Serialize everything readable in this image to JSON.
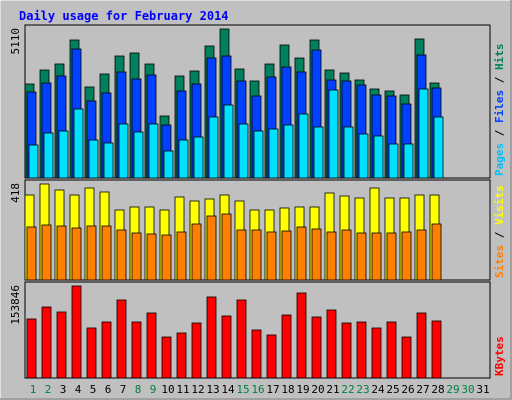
{
  "chart_data": [
    {
      "type": "bar",
      "panel": "hits-files-pages",
      "title": "Daily usage for February 2014",
      "ytick_label": "5110",
      "ylabel_parts": [
        "Pages",
        "Files",
        "Hits"
      ],
      "ylabel_separator": " / ",
      "ylim": [
        0,
        5110
      ],
      "categories": [
        "1",
        "2",
        "3",
        "4",
        "5",
        "6",
        "7",
        "8",
        "9",
        "10",
        "11",
        "12",
        "13",
        "14",
        "15",
        "16",
        "17",
        "18",
        "19",
        "20",
        "21",
        "22",
        "23",
        "24",
        "25",
        "26",
        "27",
        "28",
        "29",
        "30",
        "31"
      ],
      "series": [
        {
          "name": "Hits",
          "color": "#00805c",
          "values": [
            3230,
            3719,
            3920,
            4741,
            3125,
            3570,
            4179,
            4281,
            3925,
            2113,
            3500,
            3683,
            4536,
            5108,
            3730,
            3315,
            3900,
            4574,
            4127,
            4720,
            3713,
            3611,
            3367,
            3050,
            2981,
            2856,
            4761,
            3265,
            null,
            null,
            null
          ]
        },
        {
          "name": "Files",
          "color": "#0040ff",
          "values": [
            2940,
            3270,
            3510,
            4430,
            2650,
            2900,
            3640,
            3380,
            3540,
            1820,
            2990,
            3220,
            4130,
            4200,
            3310,
            2820,
            3460,
            3800,
            3630,
            4380,
            3350,
            3340,
            3180,
            2850,
            2810,
            2530,
            4230,
            3100,
            null,
            null,
            null
          ]
        },
        {
          "name": "Pages",
          "color": "#00e0ff",
          "values": [
            1115,
            1556,
            1614,
            2362,
            1290,
            1201,
            1848,
            1594,
            1848,
            913,
            1290,
            1403,
            2090,
            2518,
            1854,
            1603,
            1688,
            1814,
            2185,
            1748,
            3008,
            1736,
            1497,
            1443,
            1161,
            1150,
            3050,
            2090,
            null,
            null,
            null
          ]
        }
      ]
    },
    {
      "type": "bar",
      "panel": "visits-sites",
      "ytick_label": "418",
      "ylabel_parts": [
        "Sites",
        "Visits"
      ],
      "ylabel_separator": " / ",
      "ylim": [
        0,
        418
      ],
      "categories": [
        "1",
        "2",
        "3",
        "4",
        "5",
        "6",
        "7",
        "8",
        "9",
        "10",
        "11",
        "12",
        "13",
        "14",
        "15",
        "16",
        "17",
        "18",
        "19",
        "20",
        "21",
        "22",
        "23",
        "24",
        "25",
        "26",
        "27",
        "28",
        "29",
        "30",
        "31"
      ],
      "series": [
        {
          "name": "Visits",
          "color": "#ffff00",
          "values": [
            368,
            418,
            394,
            370,
            401,
            382,
            304,
            320,
            320,
            303,
            360,
            343,
            353,
            368,
            343,
            304,
            304,
            312,
            320,
            320,
            377,
            367,
            356,
            402,
            355,
            355,
            371,
            368,
            null,
            null,
            null
          ]
        },
        {
          "name": "Sites",
          "color": "#ff8000",
          "values": [
            232,
            239,
            236,
            226,
            236,
            236,
            216,
            206,
            199,
            198,
            207,
            246,
            280,
            286,
            217,
            217,
            207,
            212,
            231,
            222,
            211,
            218,
            206,
            204,
            204,
            210,
            218,
            242,
            null,
            null,
            null
          ]
        }
      ]
    },
    {
      "type": "bar",
      "panel": "kbytes",
      "ytick_label": "153846",
      "ylabel": "KBytes",
      "ylim": [
        0,
        153846
      ],
      "categories": [
        "1",
        "2",
        "3",
        "4",
        "5",
        "6",
        "7",
        "8",
        "9",
        "10",
        "11",
        "12",
        "13",
        "14",
        "15",
        "16",
        "17",
        "18",
        "19",
        "20",
        "21",
        "22",
        "23",
        "24",
        "25",
        "26",
        "27",
        "28",
        "29",
        "30",
        "31"
      ],
      "series": [
        {
          "name": "KBytes",
          "color": "#ff0000",
          "values": [
            98000,
            118000,
            110000,
            153846,
            83000,
            94000,
            131000,
            93000,
            109000,
            68000,
            76000,
            92000,
            136000,
            103000,
            131000,
            81000,
            72000,
            105000,
            142000,
            102000,
            113000,
            92000,
            93000,
            83000,
            93000,
            69000,
            108000,
            96000,
            null,
            null,
            null
          ]
        }
      ]
    }
  ],
  "x_axis": {
    "labels": [
      "1",
      "2",
      "3",
      "4",
      "5",
      "6",
      "7",
      "8",
      "9",
      "10",
      "11",
      "12",
      "13",
      "14",
      "15",
      "16",
      "17",
      "18",
      "19",
      "20",
      "21",
      "22",
      "23",
      "24",
      "25",
      "26",
      "27",
      "28",
      "29",
      "30",
      "31"
    ],
    "colors": [
      "#008040",
      "#008040",
      "#000000",
      "#000000",
      "#000000",
      "#000000",
      "#000000",
      "#008040",
      "#008040",
      "#000000",
      "#000000",
      "#000000",
      "#000000",
      "#000000",
      "#008040",
      "#008040",
      "#000000",
      "#000000",
      "#000000",
      "#000000",
      "#000000",
      "#008040",
      "#008040",
      "#000000",
      "#000000",
      "#000000",
      "#000000",
      "#000000",
      "#008040",
      "#008040",
      "#000000"
    ]
  },
  "colors": {
    "background": "#c0c0c0",
    "title": "#0000ff",
    "frame": "#000000",
    "panel_bg": "#c0c0c0",
    "bar_outline": "#000000",
    "separator": "#ffffff"
  }
}
